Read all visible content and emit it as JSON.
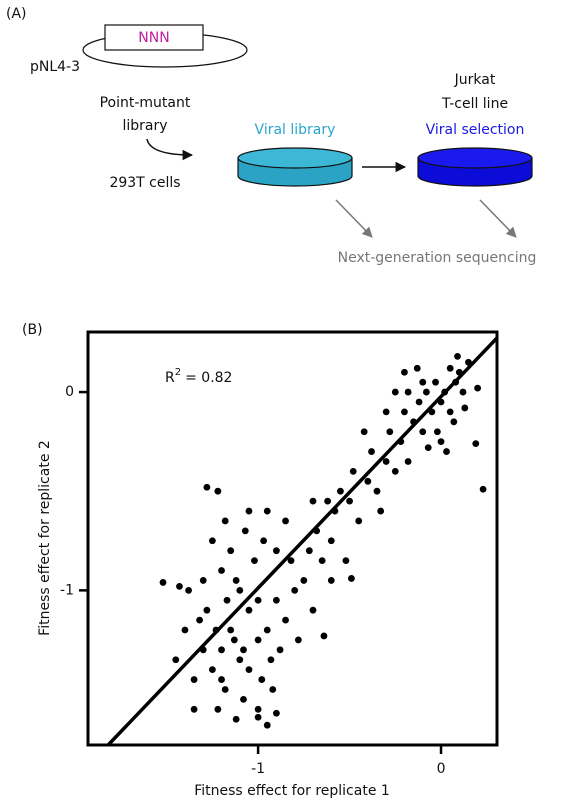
{
  "diagram": {
    "panel_label": "(A)",
    "plasmid_insert": "NNN",
    "plasmid_name": "pNL4-3",
    "library_lines": [
      "Point-mutant",
      "library"
    ],
    "cells": "293T cells",
    "viral_library": "Viral library",
    "jurkat_lines": [
      "Jurkat",
      "T-cell line"
    ],
    "viral_selection": "Viral selection",
    "sequencing": "Next-generation sequencing"
  },
  "chart_data": {
    "type": "scatter",
    "panel_label": "(B)",
    "annotation_base": "R",
    "annotation_sup": "2",
    "annotation_rest": "= 0.82",
    "x_label": "Fitness effect for replicate 1",
    "y_label": "Fitness effect for replicate 2",
    "xlim": [
      -1.93,
      0.306
    ],
    "ylim": [
      -1.78,
      0.303
    ],
    "xticks": [
      -1,
      0
    ],
    "yticks": [
      -1,
      0
    ],
    "color": "#000000",
    "x": [
      -1.2,
      -1.15,
      -1.1,
      -1.05,
      -1.0,
      -1.25,
      -1.3,
      -1.35,
      -1.18,
      -1.08,
      -0.98,
      -0.95,
      -0.9,
      -0.88,
      -1.12,
      -1.02,
      -0.97,
      -1.07,
      -1.2,
      -1.28,
      -1.4,
      -1.45,
      -1.22,
      -1.12,
      -1.0,
      -0.92,
      -0.85,
      -0.8,
      -0.82,
      -0.9,
      -1.15,
      -1.1,
      -1.05,
      -1.17,
      -1.32,
      -1.38,
      -1.25,
      -1.05,
      -0.95,
      -1.0,
      -1.13,
      -1.23,
      -1.08,
      -0.93,
      -0.78,
      -0.75,
      -0.72,
      -0.7,
      -1.3,
      -1.2,
      -0.9,
      -0.95,
      -1.43,
      -1.52,
      -1.28,
      -1.22,
      -1.0,
      -1.35,
      -1.18,
      -0.85,
      -0.68,
      -0.65,
      -0.6,
      -0.58,
      -0.55,
      -0.5,
      -0.48,
      -0.45,
      -0.4,
      -0.38,
      -0.35,
      -0.3,
      -0.28,
      -0.25,
      -0.22,
      -0.2,
      -0.64,
      -0.49,
      -0.52,
      -0.62,
      -0.33,
      -0.42,
      -0.18,
      -0.7,
      -0.6,
      -0.15,
      -0.12,
      -0.1,
      -0.08,
      -0.05,
      -0.03,
      0.0,
      0.02,
      0.05,
      0.08,
      0.1,
      0.12,
      -0.02,
      0.0,
      0.05,
      -0.1,
      -0.18,
      -0.2,
      0.03,
      0.15,
      0.09,
      0.19,
      0.23,
      -0.25,
      0.07,
      -0.07,
      0.13,
      -0.13,
      0.2,
      -0.3
    ],
    "values": [
      -1.3,
      -1.2,
      -1.35,
      -1.1,
      -1.25,
      -1.4,
      -1.3,
      -1.45,
      -1.5,
      -1.55,
      -1.45,
      -1.2,
      -1.05,
      -1.3,
      -0.95,
      -0.85,
      -0.75,
      -0.7,
      -0.9,
      -1.1,
      -1.2,
      -1.35,
      -1.6,
      -1.65,
      -1.6,
      -1.5,
      -1.15,
      -1.0,
      -0.85,
      -0.8,
      -0.8,
      -1.0,
      -1.4,
      -1.05,
      -1.15,
      -1.0,
      -0.75,
      -0.6,
      -0.6,
      -1.05,
      -1.25,
      -1.2,
      -1.3,
      -1.35,
      -1.25,
      -0.95,
      -0.8,
      -1.1,
      -0.95,
      -1.45,
      -1.62,
      -1.68,
      -0.98,
      -0.96,
      -0.48,
      -0.5,
      -1.64,
      -1.6,
      -0.65,
      -0.65,
      -0.7,
      -0.85,
      -0.75,
      -0.6,
      -0.5,
      -0.55,
      -0.4,
      -0.65,
      -0.45,
      -0.3,
      -0.5,
      -0.35,
      -0.2,
      -0.4,
      -0.25,
      -0.1,
      -1.23,
      -0.94,
      -0.85,
      -0.55,
      -0.6,
      -0.2,
      -0.35,
      -0.55,
      -0.95,
      -0.15,
      -0.05,
      -0.2,
      0.0,
      -0.1,
      0.05,
      -0.05,
      0.0,
      -0.1,
      0.05,
      0.1,
      0.0,
      -0.2,
      -0.25,
      0.12,
      0.05,
      0.0,
      0.1,
      -0.3,
      0.15,
      0.18,
      -0.26,
      -0.49,
      0.0,
      -0.15,
      -0.28,
      -0.08,
      0.12,
      0.02,
      -0.1
    ],
    "fit_line": {
      "x": [
        -1.82,
        0.306
      ],
      "values": [
        -1.78,
        0.273
      ]
    }
  }
}
